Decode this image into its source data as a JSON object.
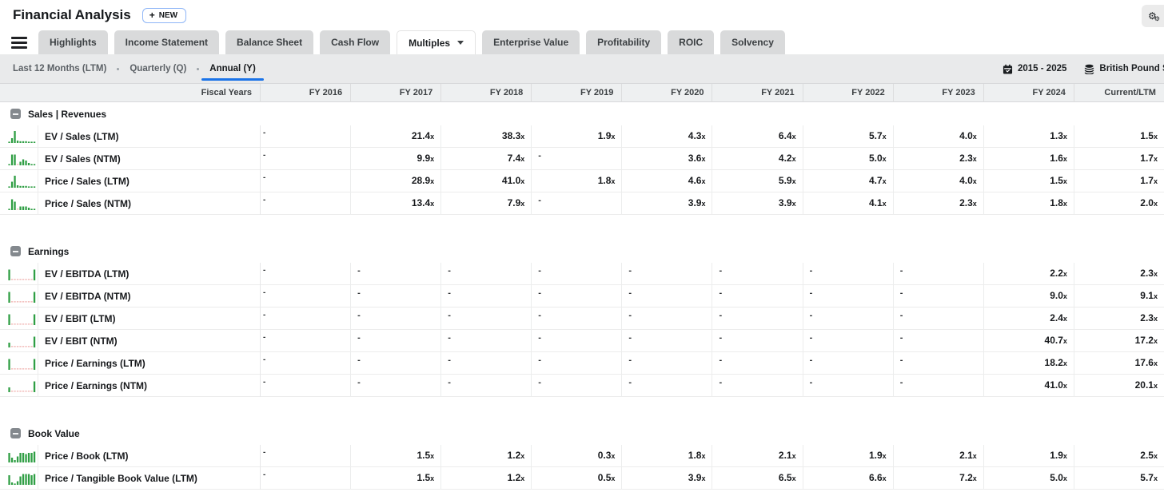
{
  "page": {
    "title": "Financial Analysis",
    "new_button_label": "NEW",
    "plus_glyph": "+"
  },
  "tabs": [
    {
      "label": "Highlights",
      "active": false
    },
    {
      "label": "Income Statement",
      "active": false
    },
    {
      "label": "Balance Sheet",
      "active": false
    },
    {
      "label": "Cash Flow",
      "active": false
    },
    {
      "label": "Multiples",
      "active": true,
      "has_dropdown": true
    },
    {
      "label": "Enterprise Value",
      "active": false
    },
    {
      "label": "Profitability",
      "active": false
    },
    {
      "label": "ROIC",
      "active": false
    },
    {
      "label": "Solvency",
      "active": false
    }
  ],
  "period_toolbar": {
    "options": [
      {
        "label": "Last 12 Months (LTM)",
        "active": false
      },
      {
        "label": "Quarterly (Q)",
        "active": false
      },
      {
        "label": "Annual (Y)",
        "active": true
      }
    ],
    "date_range": "2015 - 2025",
    "currency": "British Pound Sterling"
  },
  "table": {
    "fiscal_years_label": "Fiscal Years",
    "columns": [
      "FY 2016",
      "FY 2017",
      "FY 2018",
      "FY 2019",
      "FY 2020",
      "FY 2021",
      "FY 2022",
      "FY 2023",
      "FY 2024",
      "Current/LTM"
    ],
    "value_suffix": "x",
    "sections": [
      {
        "title": "Sales | Revenues",
        "rows": [
          {
            "label": "EV / Sales (LTM)",
            "values": [
              "-",
              "21.4",
              "38.3",
              "1.9",
              "4.3",
              "6.4",
              "5.7",
              "4.0",
              "1.3",
              "1.5"
            ],
            "spark": [
              1,
              4,
              10,
              2,
              1.5,
              1.5,
              1.5,
              1,
              1,
              1
            ]
          },
          {
            "label": "EV / Sales (NTM)",
            "values": [
              "-",
              "9.9",
              "7.4",
              "-",
              "3.6",
              "4.2",
              "5.0",
              "2.3",
              "1.6",
              "1.7"
            ],
            "spark": [
              1,
              9,
              9,
              null,
              3,
              5,
              4,
              2,
              1,
              1
            ]
          },
          {
            "label": "Price / Sales (LTM)",
            "values": [
              "-",
              "28.9",
              "41.0",
              "1.8",
              "4.6",
              "5.9",
              "4.7",
              "4.0",
              "1.5",
              "1.7"
            ],
            "spark": [
              1,
              5,
              10,
              2,
              1.5,
              1.5,
              1.5,
              1,
              1,
              1
            ]
          },
          {
            "label": "Price / Sales (NTM)",
            "values": [
              "-",
              "13.4",
              "7.9",
              "-",
              "3.9",
              "3.9",
              "4.1",
              "2.3",
              "1.8",
              "2.0"
            ],
            "spark": [
              1,
              9,
              7,
              null,
              3,
              3,
              3,
              2,
              1,
              1
            ]
          }
        ]
      },
      {
        "title": "Earnings",
        "rows": [
          {
            "label": "EV / EBITDA (LTM)",
            "values": [
              "-",
              "-",
              "-",
              "-",
              "-",
              "-",
              "-",
              "-",
              "2.2",
              "2.3"
            ],
            "spark": [
              9,
              null,
              null,
              null,
              null,
              null,
              null,
              null,
              null,
              9
            ]
          },
          {
            "label": "EV / EBITDA (NTM)",
            "values": [
              "-",
              "-",
              "-",
              "-",
              "-",
              "-",
              "-",
              "-",
              "9.0",
              "9.1"
            ],
            "spark": [
              9,
              null,
              null,
              null,
              null,
              null,
              null,
              null,
              null,
              9
            ]
          },
          {
            "label": "EV / EBIT (LTM)",
            "values": [
              "-",
              "-",
              "-",
              "-",
              "-",
              "-",
              "-",
              "-",
              "2.4",
              "2.3"
            ],
            "spark": [
              9,
              null,
              null,
              null,
              null,
              null,
              null,
              null,
              null,
              9
            ]
          },
          {
            "label": "EV / EBIT (NTM)",
            "values": [
              "-",
              "-",
              "-",
              "-",
              "-",
              "-",
              "-",
              "-",
              "40.7",
              "17.2"
            ],
            "spark": [
              4,
              null,
              null,
              null,
              null,
              null,
              null,
              null,
              null,
              9
            ]
          },
          {
            "label": "Price / Earnings (LTM)",
            "values": [
              "-",
              "-",
              "-",
              "-",
              "-",
              "-",
              "-",
              "-",
              "18.2",
              "17.6"
            ],
            "spark": [
              9,
              null,
              null,
              null,
              null,
              null,
              null,
              null,
              null,
              9
            ]
          },
          {
            "label": "Price / Earnings (NTM)",
            "values": [
              "-",
              "-",
              "-",
              "-",
              "-",
              "-",
              "-",
              "-",
              "41.0",
              "20.1"
            ],
            "spark": [
              4,
              null,
              null,
              null,
              null,
              null,
              null,
              null,
              null,
              9
            ]
          }
        ]
      },
      {
        "title": "Book Value",
        "rows": [
          {
            "label": "Price / Book (LTM)",
            "values": [
              "-",
              "1.5",
              "1.2",
              "0.3",
              "1.8",
              "2.1",
              "1.9",
              "2.1",
              "1.9",
              "2.5"
            ],
            "spark": [
              8,
              4,
              2,
              5,
              8,
              8,
              7,
              8,
              8,
              9
            ]
          },
          {
            "label": "Price / Tangible Book Value (LTM)",
            "values": [
              "-",
              "1.5",
              "1.2",
              "0.5",
              "3.9",
              "6.5",
              "6.6",
              "7.2",
              "5.0",
              "5.7"
            ],
            "spark": [
              8,
              2,
              1,
              3,
              7,
              9,
              9,
              9,
              8,
              9
            ]
          }
        ]
      }
    ]
  },
  "colors": {
    "accent_blue": "#1a73e8",
    "spark_green": "#2f9e44",
    "spark_missing_red": "#f0b3b0"
  },
  "icons": {
    "settings": "gear-icon",
    "menu": "hamburger-icon",
    "tab_dropdown": "chevron-down-icon",
    "date": "calendar-icon",
    "currency": "coins-icon",
    "section": "collapse-minus-icon",
    "row": "sparkline-bars-icon"
  }
}
